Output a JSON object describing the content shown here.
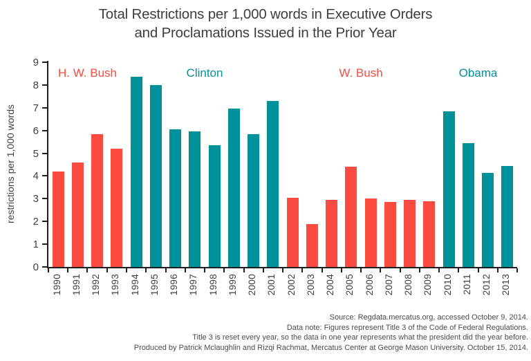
{
  "header": {
    "title_lines": [
      "Total Restrictions per 1,000 words in Executive Orders",
      "and Proclamations Issued in the Prior Year"
    ]
  },
  "palette": {
    "red": "#f94b40",
    "teal": "#00929b",
    "axis": "#1f1f1f",
    "text_dark": "#3e3e3e",
    "text_gray": "#4a4a4a"
  },
  "chart_data": {
    "type": "bar",
    "title": "Total Restrictions per 1,000 words in Executive Orders and Proclamations Issued in the Prior Year",
    "xlabel": "",
    "ylabel": "restrictions per 1,000 words",
    "ylim": [
      0,
      9
    ],
    "yticks": [
      0,
      1,
      2,
      3,
      4,
      5,
      6,
      7,
      8,
      9
    ],
    "grid": false,
    "legend": false,
    "categories": [
      "1990",
      "1991",
      "1992",
      "1993",
      "1994",
      "1995",
      "1996",
      "1997",
      "1998",
      "1999",
      "2000",
      "2001",
      "2002",
      "2003",
      "2004",
      "2005",
      "2006",
      "2007",
      "2008",
      "2009",
      "2010",
      "2011",
      "2012",
      "2013"
    ],
    "values": [
      4.2,
      4.6,
      5.85,
      5.2,
      8.35,
      8.0,
      6.05,
      5.95,
      5.35,
      6.95,
      5.85,
      7.3,
      3.05,
      1.9,
      2.95,
      4.4,
      3.0,
      2.85,
      2.95,
      2.9,
      6.85,
      5.45,
      4.15,
      4.45
    ],
    "presidents": [
      {
        "label": "H. W. Bush",
        "color": "red",
        "start": 1990,
        "end": 1993
      },
      {
        "label": "Clinton",
        "color": "teal",
        "start": 1994,
        "end": 2001
      },
      {
        "label": "W. Bush",
        "color": "red",
        "start": 2002,
        "end": 2009
      },
      {
        "label": "Obama",
        "color": "teal",
        "start": 2010,
        "end": 2013
      }
    ]
  },
  "footer": {
    "lines": [
      "Source: Regdata.mercatus.org, accessed October 9, 2014.",
      "Data note: Figures represent Title 3 of the Code of Federal Regulations.",
      "Title 3 is reset every year, so the data in one year represents what the president did the year before.",
      "Produced by Patrick Mclaughlin and Rizqi Rachmat, Mercatus Center at George Mason University. October 15, 2014."
    ]
  }
}
